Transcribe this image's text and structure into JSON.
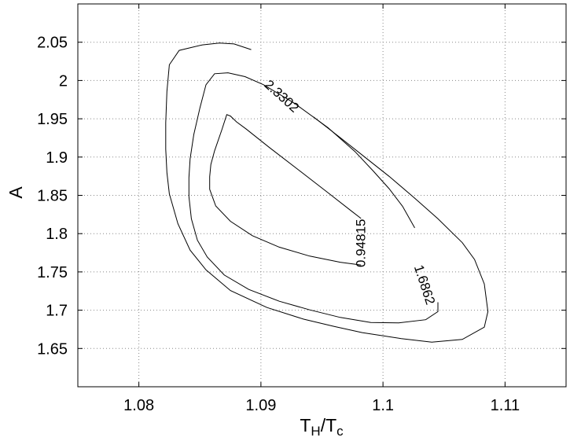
{
  "chart_data": {
    "type": "contour",
    "xlabel": {
      "main": "T",
      "sub1": "H",
      "mid": "/T",
      "sub2": "c"
    },
    "ylabel": "A",
    "xlim": [
      1.075,
      1.115
    ],
    "ylim": [
      1.6,
      2.1
    ],
    "xticks": [
      1.08,
      1.09,
      1.1,
      1.11
    ],
    "xtick_labels": [
      "1.08",
      "1.09",
      "1.1",
      "1.11"
    ],
    "yticks": [
      1.65,
      1.7,
      1.75,
      1.8,
      1.85,
      1.9,
      1.95,
      2.0,
      2.05
    ],
    "ytick_labels": [
      "1.65",
      "1.7",
      "1.75",
      "1.8",
      "1.85",
      "1.9",
      "1.95",
      "2",
      "2.05"
    ],
    "grid": true,
    "contours": [
      {
        "level": "0.94815",
        "label_at": [
          1.0982,
          1.7877
        ],
        "label_angle": -90,
        "points": [
          [
            1.0982,
            1.759
          ],
          [
            1.0965,
            1.7626
          ],
          [
            1.094,
            1.7706
          ],
          [
            1.0915,
            1.7823
          ],
          [
            1.0893,
            1.7973
          ],
          [
            1.0875,
            1.8161
          ],
          [
            1.0863,
            1.8361
          ],
          [
            1.0858,
            1.8579
          ],
          [
            1.0858,
            1.8743
          ],
          [
            1.0859,
            1.8904
          ],
          [
            1.0862,
            1.9081
          ],
          [
            1.0868,
            1.9357
          ],
          [
            1.0872,
            1.9554
          ],
          [
            1.0875,
            1.9536
          ],
          [
            1.088,
            1.946
          ],
          [
            1.0888,
            1.9365
          ],
          [
            1.0907,
            1.9124
          ],
          [
            1.0931,
            1.883
          ],
          [
            1.0954,
            1.8546
          ],
          [
            1.0974,
            1.8297
          ],
          [
            1.0982,
            1.8198
          ]
        ]
      },
      {
        "level": "1.6862",
        "label_at": [
          1.1034,
          1.7332
        ],
        "label_angle": 72,
        "points": [
          [
            1.1045,
            1.7104
          ],
          [
            1.1045,
            1.6982
          ],
          [
            1.1035,
            1.6876
          ],
          [
            1.1013,
            1.6835
          ],
          [
            1.099,
            1.684
          ],
          [
            1.0965,
            1.6906
          ],
          [
            1.094,
            1.7004
          ],
          [
            1.0915,
            1.7117
          ],
          [
            1.089,
            1.7271
          ],
          [
            1.087,
            1.7459
          ],
          [
            1.0856,
            1.7694
          ],
          [
            1.0848,
            1.7914
          ],
          [
            1.0843,
            1.8194
          ],
          [
            1.0841,
            1.8485
          ],
          [
            1.0841,
            1.873
          ],
          [
            1.0842,
            1.8975
          ],
          [
            1.0845,
            1.9295
          ],
          [
            1.085,
            1.9643
          ],
          [
            1.0855,
            1.9945
          ],
          [
            1.0862,
            2.0088
          ],
          [
            1.0873,
            2.0101
          ],
          [
            1.0887,
            2.005
          ],
          [
            1.0902,
            1.9946
          ],
          [
            1.0927,
            1.9707
          ],
          [
            1.0955,
            1.9383
          ],
          [
            1.0977,
            1.9073
          ],
          [
            1.0992,
            1.8818
          ],
          [
            1.1005,
            1.8587
          ],
          [
            1.1016,
            1.8357
          ],
          [
            1.1026,
            1.8075
          ]
        ]
      },
      {
        "level": "2.3302",
        "label_at": [
          1.0917,
          1.9795
        ],
        "label_angle": 42,
        "points": [
          [
            1.0943,
            1.9526
          ],
          [
            1.0965,
            1.9254
          ],
          [
            1.0985,
            1.9001
          ],
          [
            1.1005,
            1.8748
          ],
          [
            1.1025,
            1.8477
          ],
          [
            1.1045,
            1.8194
          ],
          [
            1.1065,
            1.7882
          ],
          [
            1.1075,
            1.7662
          ],
          [
            1.1083,
            1.7343
          ],
          [
            1.1086,
            1.6983
          ],
          [
            1.1083,
            1.6778
          ],
          [
            1.1065,
            1.6618
          ],
          [
            1.104,
            1.6582
          ],
          [
            1.1015,
            1.6629
          ],
          [
            1.0983,
            1.6707
          ],
          [
            1.096,
            1.6787
          ],
          [
            1.0935,
            1.6883
          ],
          [
            1.0905,
            1.7035
          ],
          [
            1.0875,
            1.7257
          ],
          [
            1.0855,
            1.7527
          ],
          [
            1.0842,
            1.7784
          ],
          [
            1.0832,
            1.8129
          ],
          [
            1.0825,
            1.8519
          ],
          [
            1.0823,
            1.8799
          ],
          [
            1.0822,
            1.9103
          ],
          [
            1.0822,
            1.9449
          ],
          [
            1.0823,
            1.9855
          ],
          [
            1.0825,
            2.0205
          ],
          [
            1.0833,
            2.0393
          ],
          [
            1.0852,
            2.0465
          ],
          [
            1.0866,
            2.049
          ],
          [
            1.0878,
            2.0477
          ],
          [
            1.0892,
            2.0403
          ]
        ]
      }
    ]
  }
}
